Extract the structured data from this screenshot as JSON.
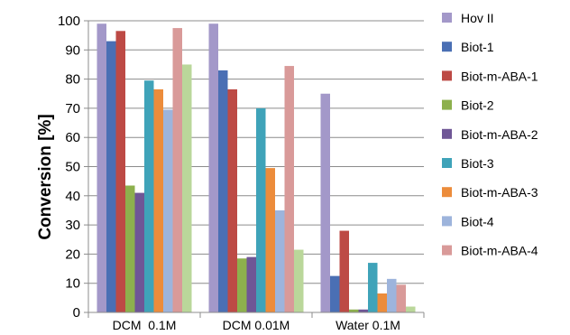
{
  "chart_data": {
    "type": "bar",
    "ylabel": "Conversion [%]",
    "ylim": [
      0,
      100
    ],
    "yticks": [
      0,
      10,
      20,
      30,
      40,
      50,
      60,
      70,
      80,
      90,
      100
    ],
    "grid": true,
    "legend_position": "right",
    "categories": [
      "DCM  0.1M",
      "DCM 0.01M",
      "Water 0.1M"
    ],
    "series": [
      {
        "name": "Hov II",
        "color": "#a398c9",
        "values": [
          99,
          99,
          75
        ]
      },
      {
        "name": "Biot-1",
        "color": "#4a6fb4",
        "values": [
          93,
          83,
          12.5
        ]
      },
      {
        "name": "Biot-m-ABA-1",
        "color": "#bd4a45",
        "values": [
          96.5,
          76.5,
          28
        ]
      },
      {
        "name": "Biot-2",
        "color": "#8db04d",
        "values": [
          43.5,
          18.5,
          1
        ]
      },
      {
        "name": "Biot-m-ABA-2",
        "color": "#6f5696",
        "values": [
          41,
          19,
          1
        ]
      },
      {
        "name": "Biot-3",
        "color": "#3fa3b9",
        "values": [
          79.5,
          70,
          17
        ]
      },
      {
        "name": "Biot-m-ABA-3",
        "color": "#ec8c3b",
        "values": [
          76.5,
          49.5,
          6.5
        ]
      },
      {
        "name": "Biot-4",
        "color": "#9db4dc",
        "values": [
          69.5,
          35,
          11.5
        ]
      },
      {
        "name": "Biot-m-ABA-4",
        "color": "#d99a99",
        "values": [
          97.5,
          84.5,
          9.5
        ]
      },
      {
        "name": "",
        "color": "#bad79a",
        "values": [
          85,
          21.5,
          2
        ]
      }
    ]
  }
}
